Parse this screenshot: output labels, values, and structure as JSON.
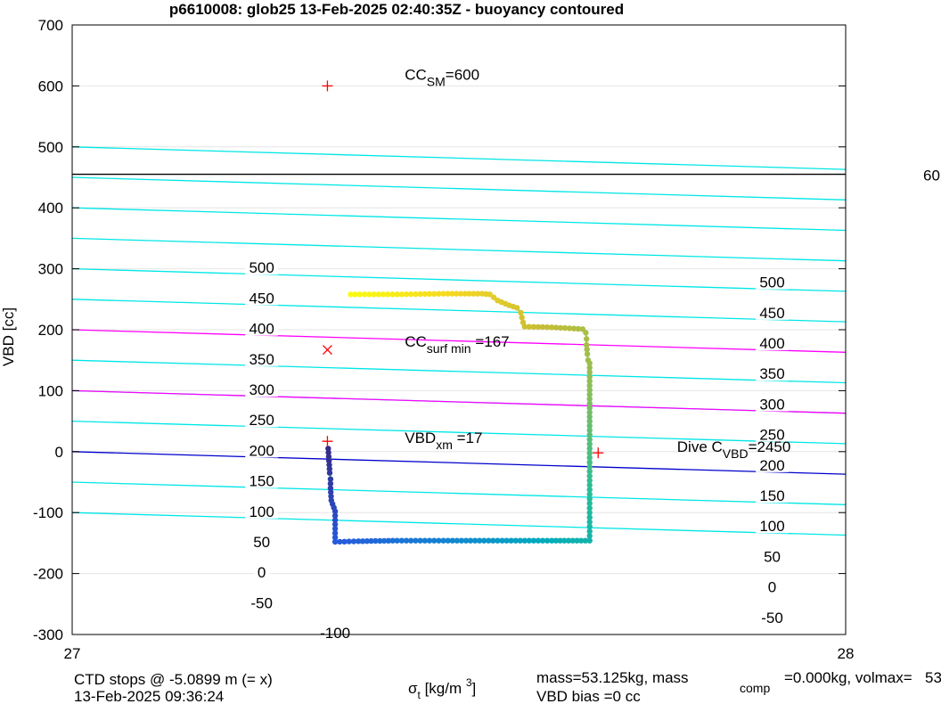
{
  "chart_data": {
    "type": "scatter",
    "title": "p6610008: glob25 13-Feb-2025 02:40:35Z - buoyancy contoured",
    "ylabel": "VBD [cc]",
    "xlabel": {
      "base": "σ",
      "sub": "t",
      "unit_pre": " [kg/m ",
      "sup": "3",
      "unit_post": "]"
    },
    "xlim": [
      27,
      28
    ],
    "ylim": [
      -300,
      700
    ],
    "x_ticks": [
      "27",
      "28"
    ],
    "y_ticks": [
      "700",
      "600",
      "500",
      "400",
      "300",
      "200",
      "100",
      "0",
      "-100",
      "-200",
      "-300"
    ],
    "grid": true,
    "horizontal_lines": [
      {
        "y": 455,
        "color": "#000000",
        "label": "60"
      }
    ],
    "contours": {
      "slope": -37,
      "cyan_levels": [
        500,
        450,
        400,
        350,
        300,
        250,
        150,
        100,
        50,
        -50,
        -100
      ],
      "cyan_color": "#00e6e6",
      "magenta_levels": [
        200,
        100
      ],
      "magenta_color": "#ff00ff",
      "zero_level": 0,
      "zero_color": "#0000cc",
      "left_labels": [
        "500",
        "450",
        "400",
        "350",
        "300",
        "250",
        "200",
        "150",
        "100",
        "50",
        "0",
        "-50",
        "-100"
      ],
      "right_labels": [
        "500",
        "450",
        "400",
        "350",
        "300",
        "250",
        "200",
        "150",
        "100",
        "50",
        "0",
        "-50"
      ]
    },
    "markers": [
      {
        "x": 27.33,
        "y": 600,
        "symbol": "+",
        "color": "#ff0000"
      },
      {
        "x": 27.33,
        "y": 167,
        "symbol": "x",
        "color": "#ff0000"
      },
      {
        "x": 27.33,
        "y": 17,
        "symbol": "+",
        "color": "#ff0000"
      },
      {
        "x": 27.68,
        "y": -2,
        "symbol": "+",
        "color": "#ff0000"
      }
    ],
    "annotations": [
      {
        "x": 27.43,
        "y": 610,
        "base": "CC",
        "sub": "SM",
        "rest": "=600"
      },
      {
        "x": 27.43,
        "y": 172,
        "base": "CC",
        "sub": "surf min",
        "rest": "  =167"
      },
      {
        "x": 27.43,
        "y": 14,
        "base": "VBD",
        "sub": "xm",
        "rest": "  =17"
      },
      {
        "x": 27.782,
        "y": 0,
        "base": "Dive C",
        "sub": "VBD",
        "rest": "=2450"
      }
    ],
    "series": [
      {
        "path": [
          [
            27.331,
            5
          ],
          [
            27.332,
            -15
          ],
          [
            27.333,
            -35
          ],
          [
            27.334,
            -45
          ],
          [
            27.334,
            -60
          ],
          [
            27.335,
            -80
          ],
          [
            27.34,
            -98
          ],
          [
            27.34,
            -148
          ],
          [
            27.37,
            -147
          ],
          [
            27.42,
            -146
          ],
          [
            27.48,
            -146
          ],
          [
            27.55,
            -146
          ],
          [
            27.62,
            -146
          ],
          [
            27.669,
            -146
          ],
          [
            27.669,
            -85
          ],
          [
            27.669,
            35
          ],
          [
            27.669,
            145
          ],
          [
            27.667,
            150
          ],
          [
            27.666,
            160
          ],
          [
            27.665,
            175
          ],
          [
            27.665,
            185
          ],
          [
            27.664,
            195
          ],
          [
            27.66,
            201
          ],
          [
            27.62,
            204
          ],
          [
            27.585,
            205
          ],
          [
            27.583,
            212
          ],
          [
            27.58,
            228
          ],
          [
            27.575,
            236
          ],
          [
            27.565,
            240
          ],
          [
            27.55,
            248
          ],
          [
            27.545,
            253
          ],
          [
            27.54,
            258
          ],
          [
            27.53,
            259
          ],
          [
            27.48,
            259
          ],
          [
            27.42,
            258
          ],
          [
            27.36,
            258
          ]
        ]
      }
    ],
    "footer": {
      "left1": "CTD stops @ -5.0899 m (= x)",
      "left2": "13-Feb-2025 09:36:24",
      "right1_a": "mass=53.125kg, mass",
      "right1_sub": "comp",
      "right1_b": "=0.000kg, volmax=",
      "right1_cut": "53",
      "right2": "VBD bias =0 cc"
    }
  }
}
